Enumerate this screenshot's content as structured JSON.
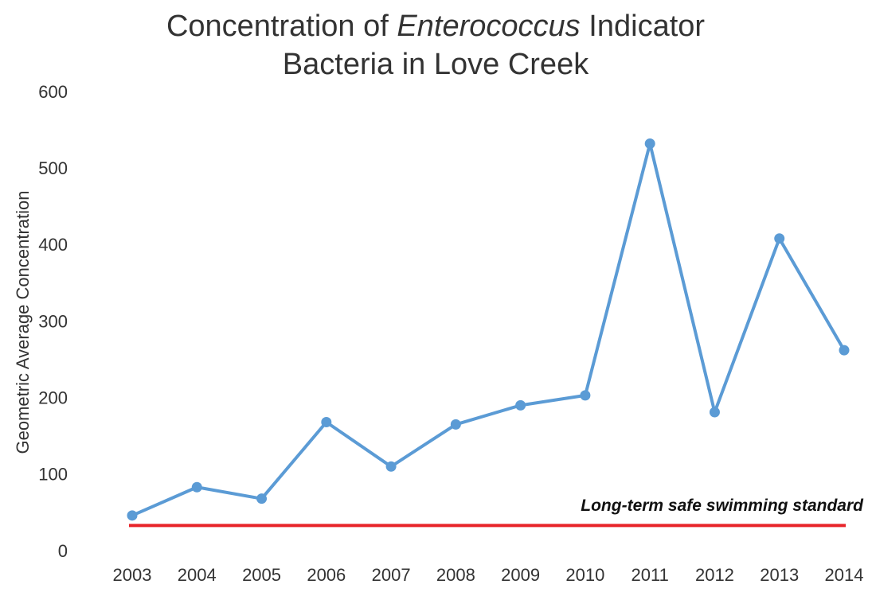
{
  "chart_data": {
    "type": "line",
    "title_lines": [
      [
        {
          "text": "Concentration of",
          "italic": false
        },
        {
          "text": "Enterococcus",
          "italic": true
        },
        {
          "text": "Indicator",
          "italic": false
        }
      ],
      [
        {
          "text": "Bacteria in Love Creek",
          "italic": false
        }
      ]
    ],
    "y_label": "Geometric Average Concentration",
    "categories": [
      "2003",
      "2004",
      "2005",
      "2006",
      "2007",
      "2008",
      "2009",
      "2010",
      "2011",
      "2012",
      "2013",
      "2014"
    ],
    "series": [
      {
        "name": "Enterococcus",
        "color": "#5b9bd5",
        "values": [
          48,
          85,
          70,
          170,
          112,
          167,
          192,
          205,
          534,
          183,
          410,
          264
        ]
      }
    ],
    "reference_lines": [
      {
        "value": 35,
        "label": "Long-term safe swimming standard",
        "color": "#e8242a"
      }
    ],
    "ylim": [
      0,
      600
    ],
    "yticks": [
      0,
      100,
      200,
      300,
      400,
      500,
      600
    ],
    "grid": false,
    "legend": false
  }
}
